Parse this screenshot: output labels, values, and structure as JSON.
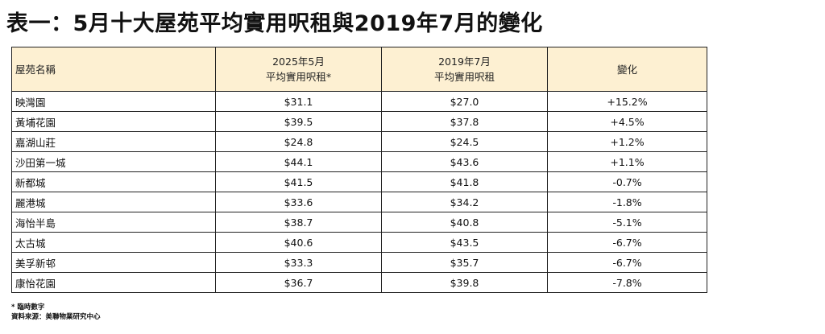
{
  "title": "表一：5月十大屋苑平均實用呎租與2019年7月的變化",
  "table": {
    "headers": {
      "name": "屋苑名稱",
      "col1_line1": "2025年5月",
      "col1_line2": "平均實用呎租*",
      "col2_line1": "2019年7月",
      "col2_line2": "平均實用呎租",
      "change": "變化"
    },
    "rows": [
      {
        "name": "映灣園",
        "rent_2025": "$31.1",
        "rent_2019": "$27.0",
        "change": "+15.2%"
      },
      {
        "name": "黃埔花園",
        "rent_2025": "$39.5",
        "rent_2019": "$37.8",
        "change": "+4.5%"
      },
      {
        "name": "嘉湖山莊",
        "rent_2025": "$24.8",
        "rent_2019": "$24.5",
        "change": "+1.2%"
      },
      {
        "name": "沙田第一城",
        "rent_2025": "$44.1",
        "rent_2019": "$43.6",
        "change": "+1.1%"
      },
      {
        "name": "新都城",
        "rent_2025": "$41.5",
        "rent_2019": "$41.8",
        "change": "-0.7%"
      },
      {
        "name": "麗港城",
        "rent_2025": "$33.6",
        "rent_2019": "$34.2",
        "change": "-1.8%"
      },
      {
        "name": "海怡半島",
        "rent_2025": "$38.7",
        "rent_2019": "$40.8",
        "change": "-5.1%"
      },
      {
        "name": "太古城",
        "rent_2025": "$40.6",
        "rent_2019": "$43.5",
        "change": "-6.7%"
      },
      {
        "name": "美孚新邨",
        "rent_2025": "$33.3",
        "rent_2019": "$35.7",
        "change": "-6.7%"
      },
      {
        "name": "康怡花園",
        "rent_2025": "$36.7",
        "rent_2019": "$39.8",
        "change": "-7.8%"
      }
    ]
  },
  "footnotes": {
    "provisional": "* 臨時數字",
    "source": "資料來源：美聯物業研究中心"
  },
  "colors": {
    "header_bg": "#fdf0d2",
    "border": "#222222"
  }
}
